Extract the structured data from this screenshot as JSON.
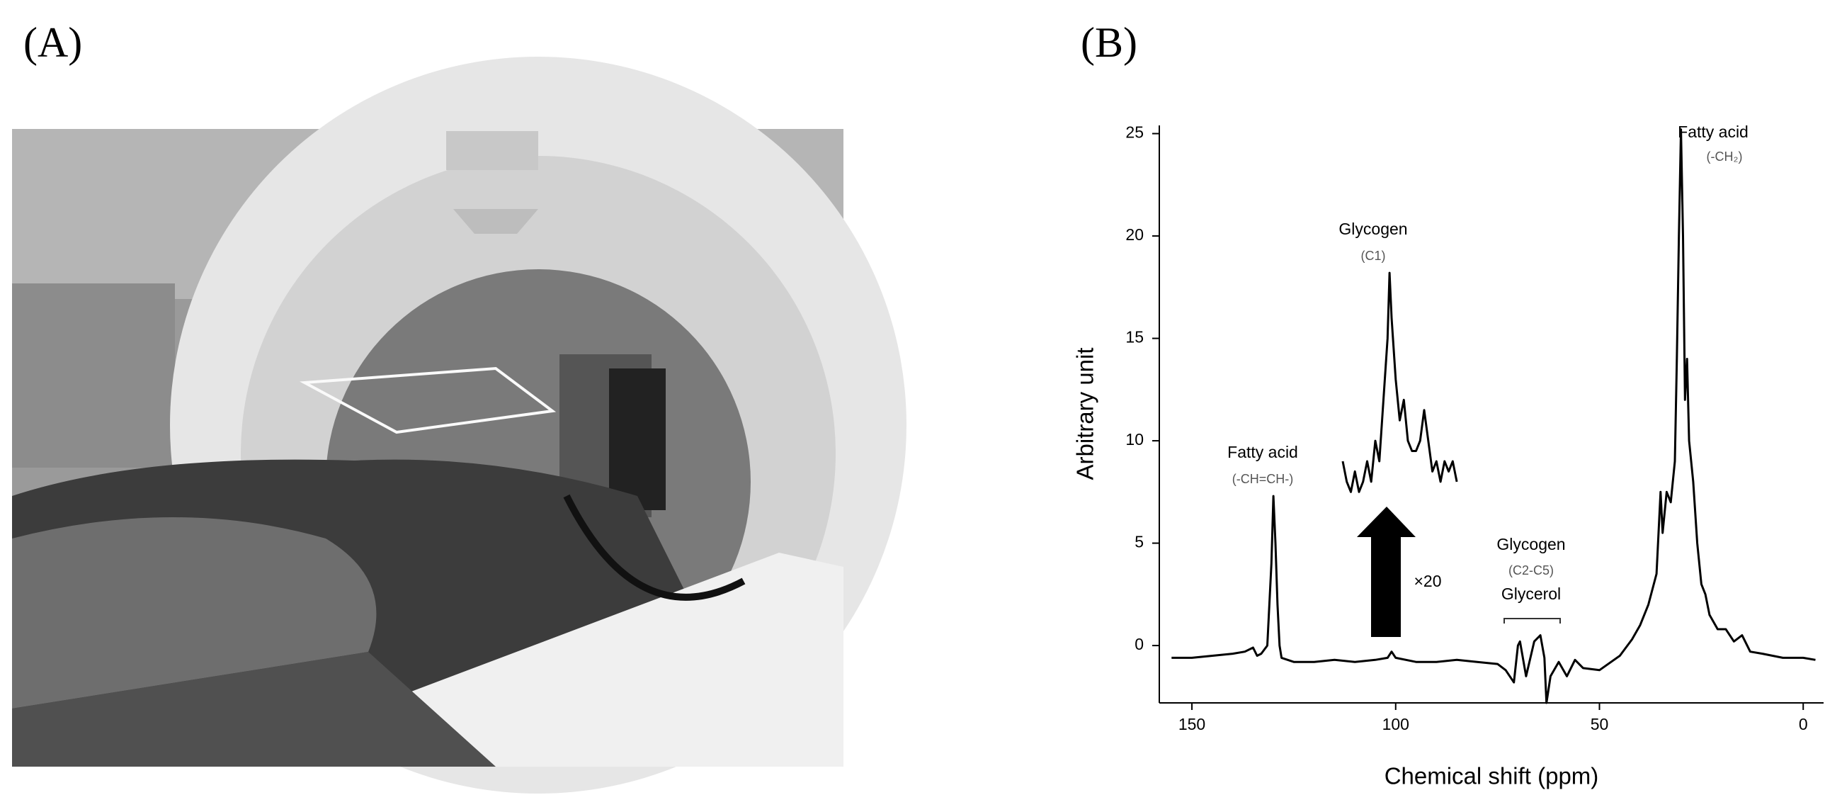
{
  "panel_a": {
    "label": "(A)"
  },
  "panel_b": {
    "label": "(B)"
  },
  "chart_data": {
    "type": "line",
    "x_label": "Chemical shift (ppm)",
    "y_label": "Arbitrary unit",
    "xlim": [
      158,
      -5
    ],
    "ylim": [
      -2.8,
      25.4
    ],
    "xticks": [
      150,
      100,
      50,
      0
    ],
    "yticks": [
      0,
      5,
      10,
      15,
      20,
      25
    ],
    "grid": false,
    "series": [
      {
        "color": "#000000",
        "x": [
          155,
          150,
          145,
          140,
          137,
          135,
          134,
          133,
          131.5,
          130.5,
          130,
          129.5,
          129,
          128.5,
          128,
          125,
          120,
          115,
          110,
          105,
          102,
          101,
          100,
          95,
          90,
          85,
          80,
          75,
          73,
          71,
          70,
          69.5,
          68,
          66,
          64.5,
          63.5,
          63,
          62,
          60,
          58,
          56,
          54,
          50,
          45,
          42,
          40,
          38,
          36,
          35,
          34.5,
          33.5,
          32.5,
          31.5,
          31,
          30.5,
          30,
          29.5,
          29,
          28.5,
          28,
          27,
          26,
          25,
          24,
          23,
          21,
          19,
          17,
          15,
          13,
          10,
          5,
          0,
          -3
        ],
        "values": [
          -0.6,
          -0.6,
          -0.5,
          -0.4,
          -0.3,
          -0.1,
          -0.5,
          -0.4,
          0,
          4,
          7.3,
          5,
          2,
          0,
          -0.6,
          -0.8,
          -0.8,
          -0.7,
          -0.8,
          -0.7,
          -0.6,
          -0.3,
          -0.6,
          -0.8,
          -0.8,
          -0.7,
          -0.8,
          -0.9,
          -1.2,
          -1.8,
          0,
          0.2,
          -1.5,
          0.2,
          0.5,
          -0.6,
          -2.8,
          -1.5,
          -0.8,
          -1.5,
          -0.7,
          -1.1,
          -1.2,
          -0.5,
          0.3,
          1,
          2,
          3.5,
          7.5,
          5.5,
          7.5,
          7,
          9,
          14,
          20,
          25.2,
          20,
          12,
          14,
          10,
          8,
          5,
          3,
          2.5,
          1.5,
          0.8,
          0.8,
          0.2,
          0.5,
          -0.3,
          -0.4,
          -0.6,
          -0.6,
          -0.7
        ]
      },
      {
        "color": "#000000",
        "x": [
          113,
          112,
          111,
          110,
          109,
          108,
          107,
          106,
          105,
          104,
          103,
          102,
          101.5,
          101,
          100,
          99,
          98,
          97,
          96,
          95,
          94,
          93,
          92,
          91,
          90,
          89,
          88,
          87,
          86,
          85
        ],
        "values": [
          9,
          8,
          7.5,
          8.5,
          7.5,
          8,
          9,
          8,
          10,
          9,
          12,
          15,
          18.2,
          16,
          13,
          11,
          12,
          10,
          9.5,
          9.5,
          10,
          11.5,
          10,
          8.5,
          9,
          8,
          9,
          8.5,
          9,
          8
        ]
      }
    ],
    "annotations": [
      "Fatty acid",
      "(-CH=CH-)",
      "Glycogen",
      "(C1)",
      "×20",
      "Glycogen",
      "(C2-C5)",
      "Glycerol",
      "Fatty acid",
      "(-CH₂)"
    ]
  }
}
